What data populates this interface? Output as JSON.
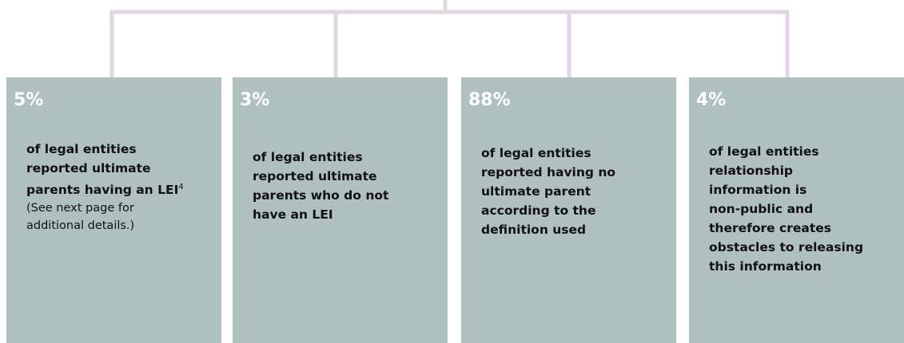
{
  "boxes": [
    {
      "percent": "5%",
      "lines": [
        "of legal entities",
        "reported ultimate",
        "parents having an LEI"
      ],
      "footnote": "4",
      "note": [
        "(See next page for",
        "additional details.)"
      ]
    },
    {
      "percent": "3%",
      "lines": [
        "of legal entities",
        "reported ultimate",
        "parents who do not",
        "have an LEI"
      ]
    },
    {
      "percent": "88%",
      "lines": [
        "of legal entities",
        "reported having no",
        "ultimate parent",
        "according to the",
        "definition used"
      ]
    },
    {
      "percent": "4%",
      "lines": [
        "of legal entities",
        "relationship",
        "information is",
        "non-public and",
        "therefore creates",
        "obstacles to releasing",
        "this information"
      ]
    }
  ]
}
